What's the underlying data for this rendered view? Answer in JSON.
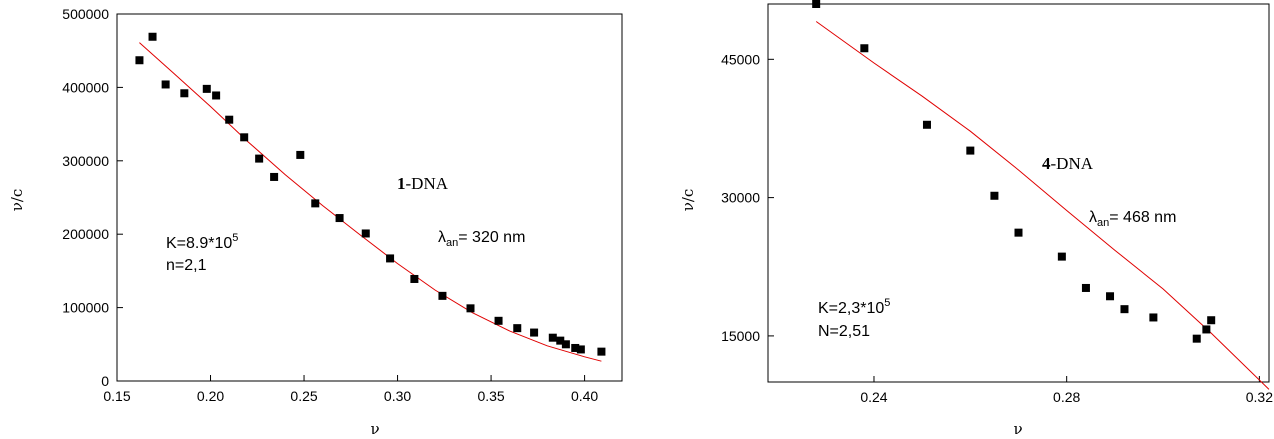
{
  "chart_data": [
    {
      "type": "scatter",
      "xlabel": "ν",
      "ylabel": "ν/c",
      "xlim": [
        0.15,
        0.42
      ],
      "ylim": [
        0,
        500000
      ],
      "x_ticks": [
        0.15,
        0.2,
        0.25,
        0.3,
        0.35,
        0.4
      ],
      "x_tick_labels": [
        "0.15",
        "0.20",
        "0.25",
        "0.30",
        "0.35",
        "0.40"
      ],
      "y_ticks": [
        0,
        100000,
        200000,
        300000,
        400000,
        500000
      ],
      "y_tick_labels": [
        "0",
        "100000",
        "200000",
        "300000",
        "400000",
        "500000"
      ],
      "points": [
        [
          0.162,
          437000
        ],
        [
          0.169,
          469000
        ],
        [
          0.176,
          404000
        ],
        [
          0.186,
          392000
        ],
        [
          0.198,
          398000
        ],
        [
          0.203,
          389000
        ],
        [
          0.21,
          356000
        ],
        [
          0.218,
          332000
        ],
        [
          0.226,
          303000
        ],
        [
          0.234,
          278000
        ],
        [
          0.248,
          308000
        ],
        [
          0.256,
          242000
        ],
        [
          0.269,
          222000
        ],
        [
          0.283,
          201000
        ],
        [
          0.296,
          167000
        ],
        [
          0.309,
          139000
        ],
        [
          0.324,
          116000
        ],
        [
          0.339,
          99000
        ],
        [
          0.354,
          82000
        ],
        [
          0.364,
          72000
        ],
        [
          0.373,
          66000
        ],
        [
          0.383,
          59000
        ],
        [
          0.387,
          55000
        ],
        [
          0.39,
          50000
        ],
        [
          0.395,
          45000
        ],
        [
          0.398,
          43000
        ],
        [
          0.409,
          40000
        ]
      ],
      "fit_curve": [
        [
          0.162,
          461000
        ],
        [
          0.18,
          420000
        ],
        [
          0.2,
          374000
        ],
        [
          0.22,
          326000
        ],
        [
          0.24,
          281000
        ],
        [
          0.26,
          239000
        ],
        [
          0.28,
          199000
        ],
        [
          0.3,
          160000
        ],
        [
          0.32,
          124000
        ],
        [
          0.34,
          93000
        ],
        [
          0.36,
          68000
        ],
        [
          0.38,
          48000
        ],
        [
          0.4,
          33000
        ],
        [
          0.409,
          27000
        ]
      ],
      "marker_color": "#000000",
      "fit_color": "#e00000",
      "annotations": {
        "complex_bold": "1",
        "complex_rest": "-DNA",
        "lambda_symbol": "λ",
        "lambda_sub": "an",
        "lambda_value": "= 320 nm",
        "k_text": "K=8.9*10",
        "k_exp": "5",
        "n_text": "n=2,1"
      }
    },
    {
      "type": "scatter",
      "xlabel": "ν",
      "ylabel": "ν/c",
      "xlim": [
        0.218,
        0.322
      ],
      "ylim": [
        10000,
        51000
      ],
      "x_ticks": [
        0.24,
        0.28,
        0.32
      ],
      "x_tick_labels": [
        "0.24",
        "0.28",
        "0.32"
      ],
      "y_ticks": [
        15000,
        30000,
        45000
      ],
      "y_tick_labels": [
        "15000",
        "30000",
        "45000"
      ],
      "points": [
        [
          0.228,
          51000
        ],
        [
          0.238,
          46200
        ],
        [
          0.251,
          37900
        ],
        [
          0.26,
          35100
        ],
        [
          0.265,
          30200
        ],
        [
          0.27,
          26200
        ],
        [
          0.279,
          23600
        ],
        [
          0.284,
          20200
        ],
        [
          0.289,
          19300
        ],
        [
          0.292,
          17900
        ],
        [
          0.298,
          17000
        ],
        [
          0.307,
          14700
        ],
        [
          0.309,
          15700
        ],
        [
          0.31,
          16700
        ]
      ],
      "fit_curve": [
        [
          0.228,
          49100
        ],
        [
          0.24,
          44600
        ],
        [
          0.25,
          41000
        ],
        [
          0.26,
          37200
        ],
        [
          0.27,
          33000
        ],
        [
          0.28,
          28600
        ],
        [
          0.29,
          24300
        ],
        [
          0.3,
          20100
        ],
        [
          0.31,
          15300
        ],
        [
          0.322,
          9200
        ]
      ],
      "marker_color": "#000000",
      "fit_color": "#e00000",
      "annotations": {
        "complex_bold": "4",
        "complex_rest": "-DNA",
        "lambda_symbol": "λ",
        "lambda_sub": "an",
        "lambda_value": "= 468 nm",
        "k_text": "K=2,3*10",
        "k_exp": "5",
        "n_text": "N=2,51"
      }
    }
  ]
}
